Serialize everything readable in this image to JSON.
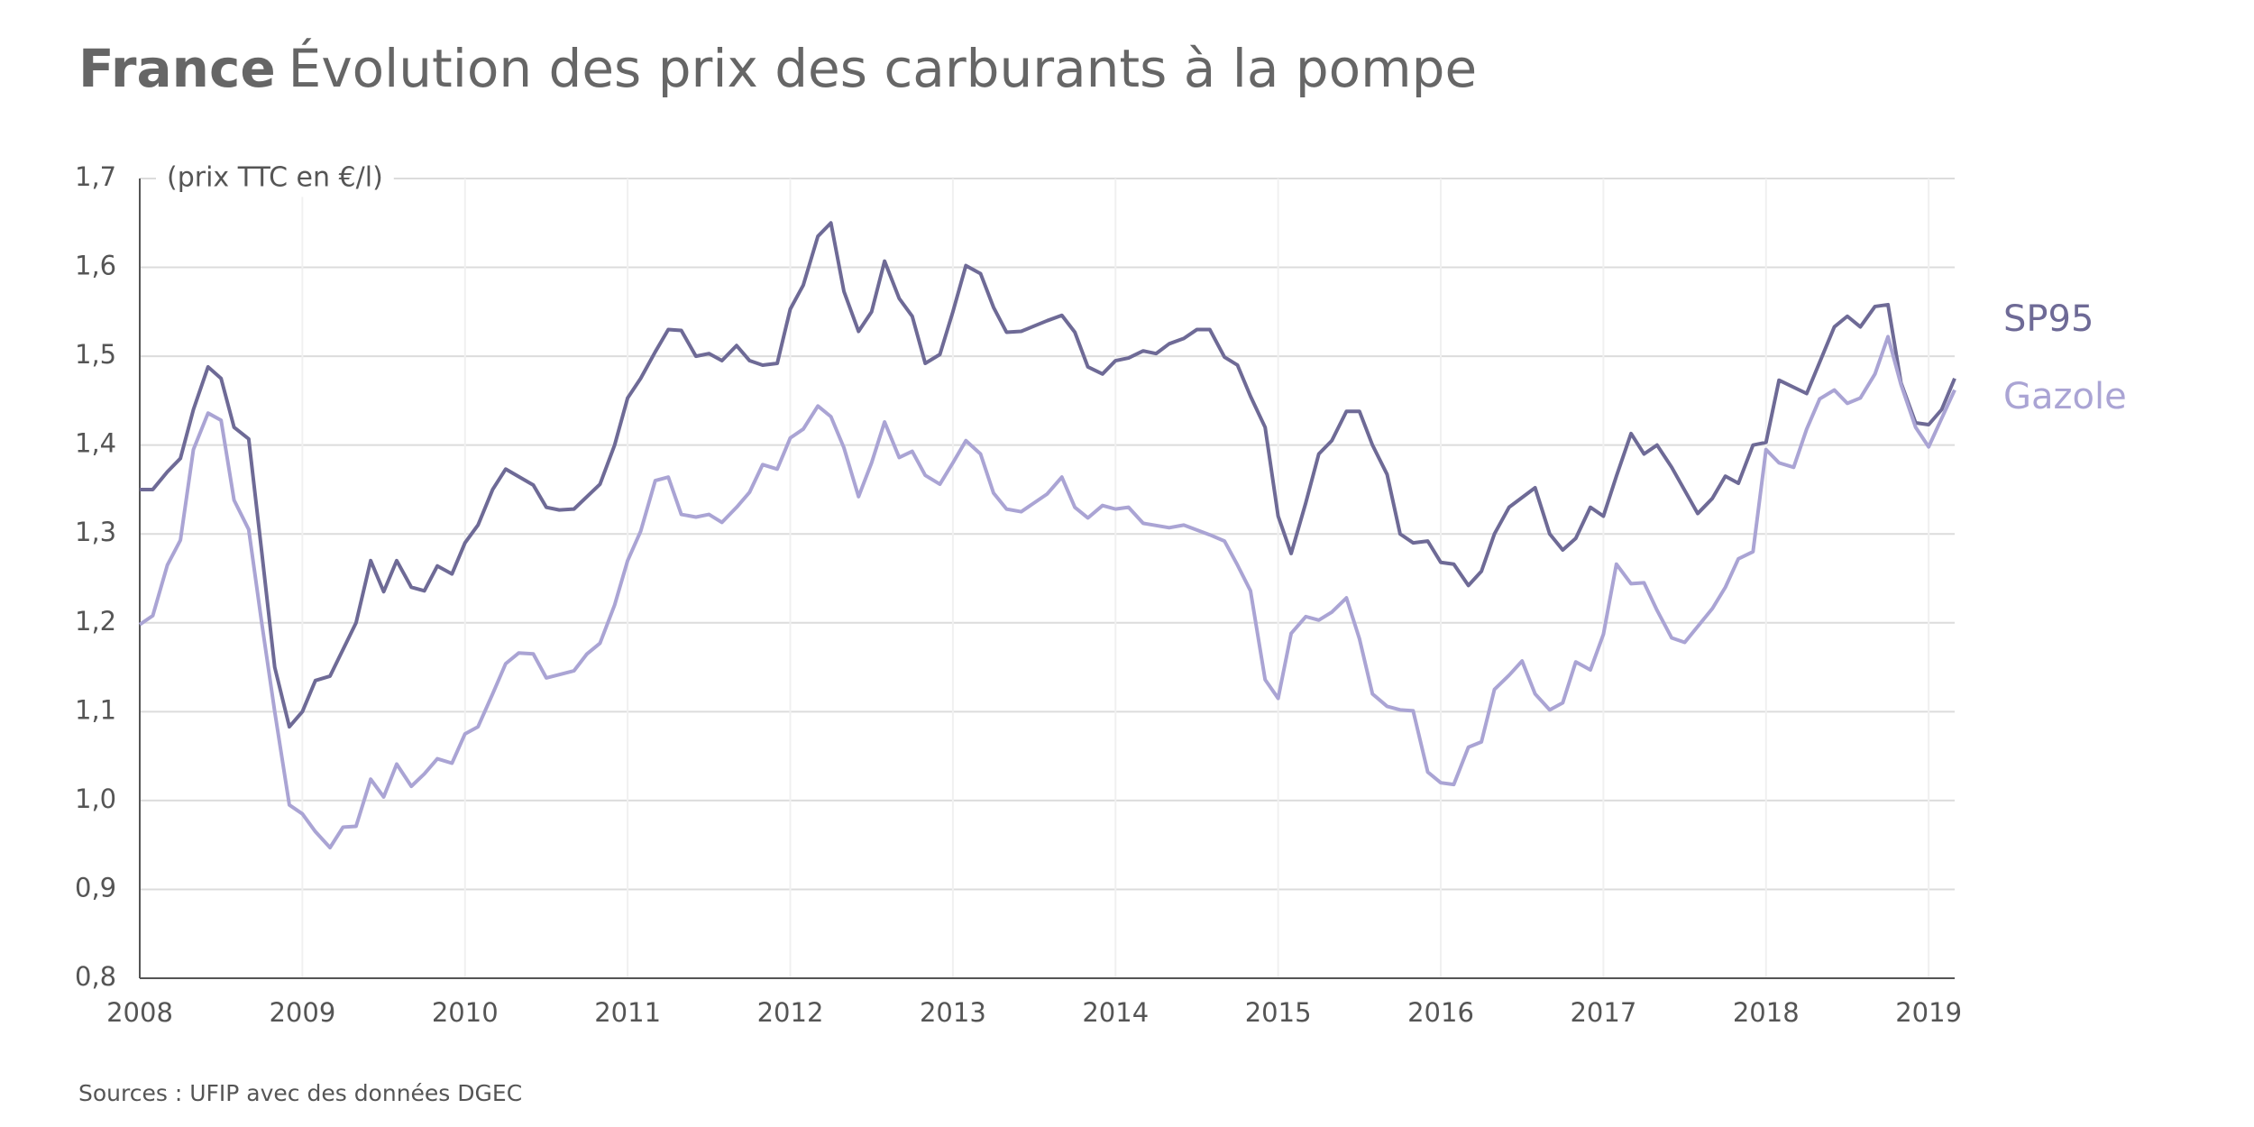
{
  "chart_data": {
    "type": "line",
    "title_bold": "France",
    "title": "Évolution des prix des carburants à la pompe",
    "y_unit_label": "(prix TTC en €/l)",
    "source": "Sources : UFIP avec des données DGEC",
    "xlim": [
      2008,
      2019.16
    ],
    "xticks": [
      2008,
      2009,
      2010,
      2011,
      2012,
      2013,
      2014,
      2015,
      2016,
      2017,
      2018,
      2019
    ],
    "ylim": [
      0.8,
      1.7
    ],
    "yticks": [
      {
        "value": 0.8,
        "label": "0,8"
      },
      {
        "value": 0.9,
        "label": "0,9"
      },
      {
        "value": 1.0,
        "label": "1,0"
      },
      {
        "value": 1.1,
        "label": "1,1"
      },
      {
        "value": 1.2,
        "label": "1,2"
      },
      {
        "value": 1.3,
        "label": "1,3"
      },
      {
        "value": 1.4,
        "label": "1,4"
      },
      {
        "value": 1.5,
        "label": "1,5"
      },
      {
        "value": 1.6,
        "label": "1,6"
      },
      {
        "value": 1.7,
        "label": "1,7"
      }
    ],
    "grid": true,
    "series": [
      {
        "name": "SP95",
        "color": "#6e6a96",
        "x": [
          2008.0,
          2008.08,
          2008.17,
          2008.25,
          2008.33,
          2008.42,
          2008.5,
          2008.58,
          2008.67,
          2008.75,
          2008.83,
          2008.92,
          2009.0,
          2009.08,
          2009.17,
          2009.33,
          2009.42,
          2009.5,
          2009.58,
          2009.67,
          2009.75,
          2009.83,
          2009.92,
          2010.0,
          2010.08,
          2010.17,
          2010.25,
          2010.42,
          2010.5,
          2010.58,
          2010.67,
          2010.83,
          2010.92,
          2011.0,
          2011.08,
          2011.17,
          2011.25,
          2011.33,
          2011.42,
          2011.5,
          2011.58,
          2011.67,
          2011.75,
          2011.83,
          2011.92,
          2012.0,
          2012.08,
          2012.17,
          2012.25,
          2012.33,
          2012.42,
          2012.5,
          2012.58,
          2012.67,
          2012.75,
          2012.83,
          2012.92,
          2013.0,
          2013.08,
          2013.17,
          2013.25,
          2013.33,
          2013.42,
          2013.58,
          2013.67,
          2013.75,
          2013.83,
          2013.92,
          2014.0,
          2014.08,
          2014.17,
          2014.25,
          2014.33,
          2014.42,
          2014.5,
          2014.58,
          2014.67,
          2014.75,
          2014.83,
          2014.92,
          2015.0,
          2015.08,
          2015.17,
          2015.25,
          2015.33,
          2015.42,
          2015.5,
          2015.58,
          2015.67,
          2015.75,
          2015.83,
          2015.92,
          2016.0,
          2016.08,
          2016.17,
          2016.25,
          2016.33,
          2016.42,
          2016.58,
          2016.67,
          2016.75,
          2016.83,
          2016.92,
          2017.0,
          2017.08,
          2017.17,
          2017.25,
          2017.33,
          2017.42,
          2017.58,
          2017.67,
          2017.75,
          2017.83,
          2017.92,
          2018.0,
          2018.08,
          2018.25,
          2018.42,
          2018.5,
          2018.58,
          2018.67,
          2018.75,
          2018.83,
          2018.92,
          2019.0,
          2019.08,
          2019.16
        ],
        "values": [
          1.35,
          1.35,
          1.37,
          1.385,
          1.44,
          1.488,
          1.475,
          1.42,
          1.407,
          1.28,
          1.15,
          1.083,
          1.1,
          1.135,
          1.14,
          1.2,
          1.27,
          1.235,
          1.27,
          1.24,
          1.236,
          1.264,
          1.255,
          1.29,
          1.31,
          1.35,
          1.373,
          1.355,
          1.33,
          1.327,
          1.328,
          1.356,
          1.4,
          1.453,
          1.475,
          1.505,
          1.53,
          1.529,
          1.5,
          1.503,
          1.495,
          1.512,
          1.495,
          1.49,
          1.492,
          1.553,
          1.58,
          1.635,
          1.65,
          1.573,
          1.528,
          1.55,
          1.607,
          1.565,
          1.545,
          1.492,
          1.502,
          1.55,
          1.602,
          1.593,
          1.555,
          1.527,
          1.528,
          1.54,
          1.546,
          1.527,
          1.488,
          1.48,
          1.495,
          1.498,
          1.506,
          1.503,
          1.514,
          1.52,
          1.53,
          1.53,
          1.499,
          1.49,
          1.455,
          1.42,
          1.32,
          1.278,
          1.335,
          1.39,
          1.405,
          1.438,
          1.438,
          1.4,
          1.367,
          1.3,
          1.29,
          1.292,
          1.268,
          1.266,
          1.242,
          1.258,
          1.3,
          1.33,
          1.352,
          1.3,
          1.282,
          1.295,
          1.33,
          1.32,
          1.365,
          1.413,
          1.39,
          1.4,
          1.375,
          1.323,
          1.34,
          1.365,
          1.357,
          1.4,
          1.403,
          1.473,
          1.458,
          1.533,
          1.545,
          1.533,
          1.556,
          1.558,
          1.47,
          1.425,
          1.423,
          1.44,
          1.475
        ]
      },
      {
        "name": "Gazole",
        "color": "#aaa4d4",
        "x": [
          2008.0,
          2008.08,
          2008.17,
          2008.25,
          2008.33,
          2008.42,
          2008.5,
          2008.58,
          2008.67,
          2008.75,
          2008.83,
          2008.92,
          2009.0,
          2009.08,
          2009.17,
          2009.25,
          2009.33,
          2009.42,
          2009.5,
          2009.58,
          2009.67,
          2009.75,
          2009.83,
          2009.92,
          2010.0,
          2010.08,
          2010.17,
          2010.25,
          2010.33,
          2010.42,
          2010.5,
          2010.67,
          2010.75,
          2010.83,
          2010.92,
          2011.0,
          2011.08,
          2011.17,
          2011.25,
          2011.33,
          2011.42,
          2011.5,
          2011.58,
          2011.67,
          2011.75,
          2011.83,
          2011.92,
          2012.0,
          2012.08,
          2012.17,
          2012.25,
          2012.33,
          2012.42,
          2012.5,
          2012.58,
          2012.67,
          2012.75,
          2012.83,
          2012.92,
          2013.0,
          2013.08,
          2013.17,
          2013.25,
          2013.33,
          2013.42,
          2013.58,
          2013.67,
          2013.75,
          2013.83,
          2013.92,
          2014.0,
          2014.08,
          2014.17,
          2014.33,
          2014.42,
          2014.58,
          2014.67,
          2014.75,
          2014.83,
          2014.92,
          2015.0,
          2015.08,
          2015.17,
          2015.25,
          2015.33,
          2015.42,
          2015.5,
          2015.58,
          2015.67,
          2015.75,
          2015.83,
          2015.92,
          2016.0,
          2016.08,
          2016.17,
          2016.25,
          2016.33,
          2016.42,
          2016.5,
          2016.58,
          2016.67,
          2016.75,
          2016.83,
          2016.92,
          2017.0,
          2017.08,
          2017.17,
          2017.25,
          2017.33,
          2017.42,
          2017.5,
          2017.67,
          2017.75,
          2017.83,
          2017.92,
          2018.0,
          2018.08,
          2018.17,
          2018.25,
          2018.33,
          2018.42,
          2018.5,
          2018.58,
          2018.67,
          2018.75,
          2018.83,
          2018.92,
          2019.0,
          2019.08,
          2019.16
        ],
        "values": [
          1.198,
          1.208,
          1.265,
          1.293,
          1.395,
          1.436,
          1.428,
          1.338,
          1.305,
          1.2,
          1.1,
          0.995,
          0.985,
          0.965,
          0.947,
          0.97,
          0.971,
          1.024,
          1.004,
          1.041,
          1.016,
          1.03,
          1.047,
          1.042,
          1.075,
          1.083,
          1.12,
          1.154,
          1.166,
          1.165,
          1.138,
          1.146,
          1.165,
          1.177,
          1.22,
          1.27,
          1.303,
          1.36,
          1.364,
          1.322,
          1.319,
          1.322,
          1.313,
          1.33,
          1.347,
          1.378,
          1.373,
          1.408,
          1.418,
          1.444,
          1.432,
          1.397,
          1.342,
          1.38,
          1.426,
          1.386,
          1.393,
          1.366,
          1.356,
          1.38,
          1.405,
          1.39,
          1.346,
          1.328,
          1.325,
          1.345,
          1.364,
          1.33,
          1.318,
          1.332,
          1.328,
          1.33,
          1.312,
          1.307,
          1.31,
          1.299,
          1.292,
          1.265,
          1.236,
          1.136,
          1.115,
          1.188,
          1.207,
          1.203,
          1.212,
          1.228,
          1.182,
          1.12,
          1.106,
          1.102,
          1.101,
          1.032,
          1.02,
          1.018,
          1.06,
          1.066,
          1.125,
          1.141,
          1.157,
          1.12,
          1.102,
          1.11,
          1.156,
          1.147,
          1.187,
          1.266,
          1.244,
          1.245,
          1.214,
          1.183,
          1.178,
          1.216,
          1.24,
          1.272,
          1.28,
          1.395,
          1.38,
          1.375,
          1.418,
          1.452,
          1.462,
          1.447,
          1.453,
          1.48,
          1.522,
          1.468,
          1.42,
          1.398,
          1.43,
          1.462
        ]
      }
    ]
  }
}
